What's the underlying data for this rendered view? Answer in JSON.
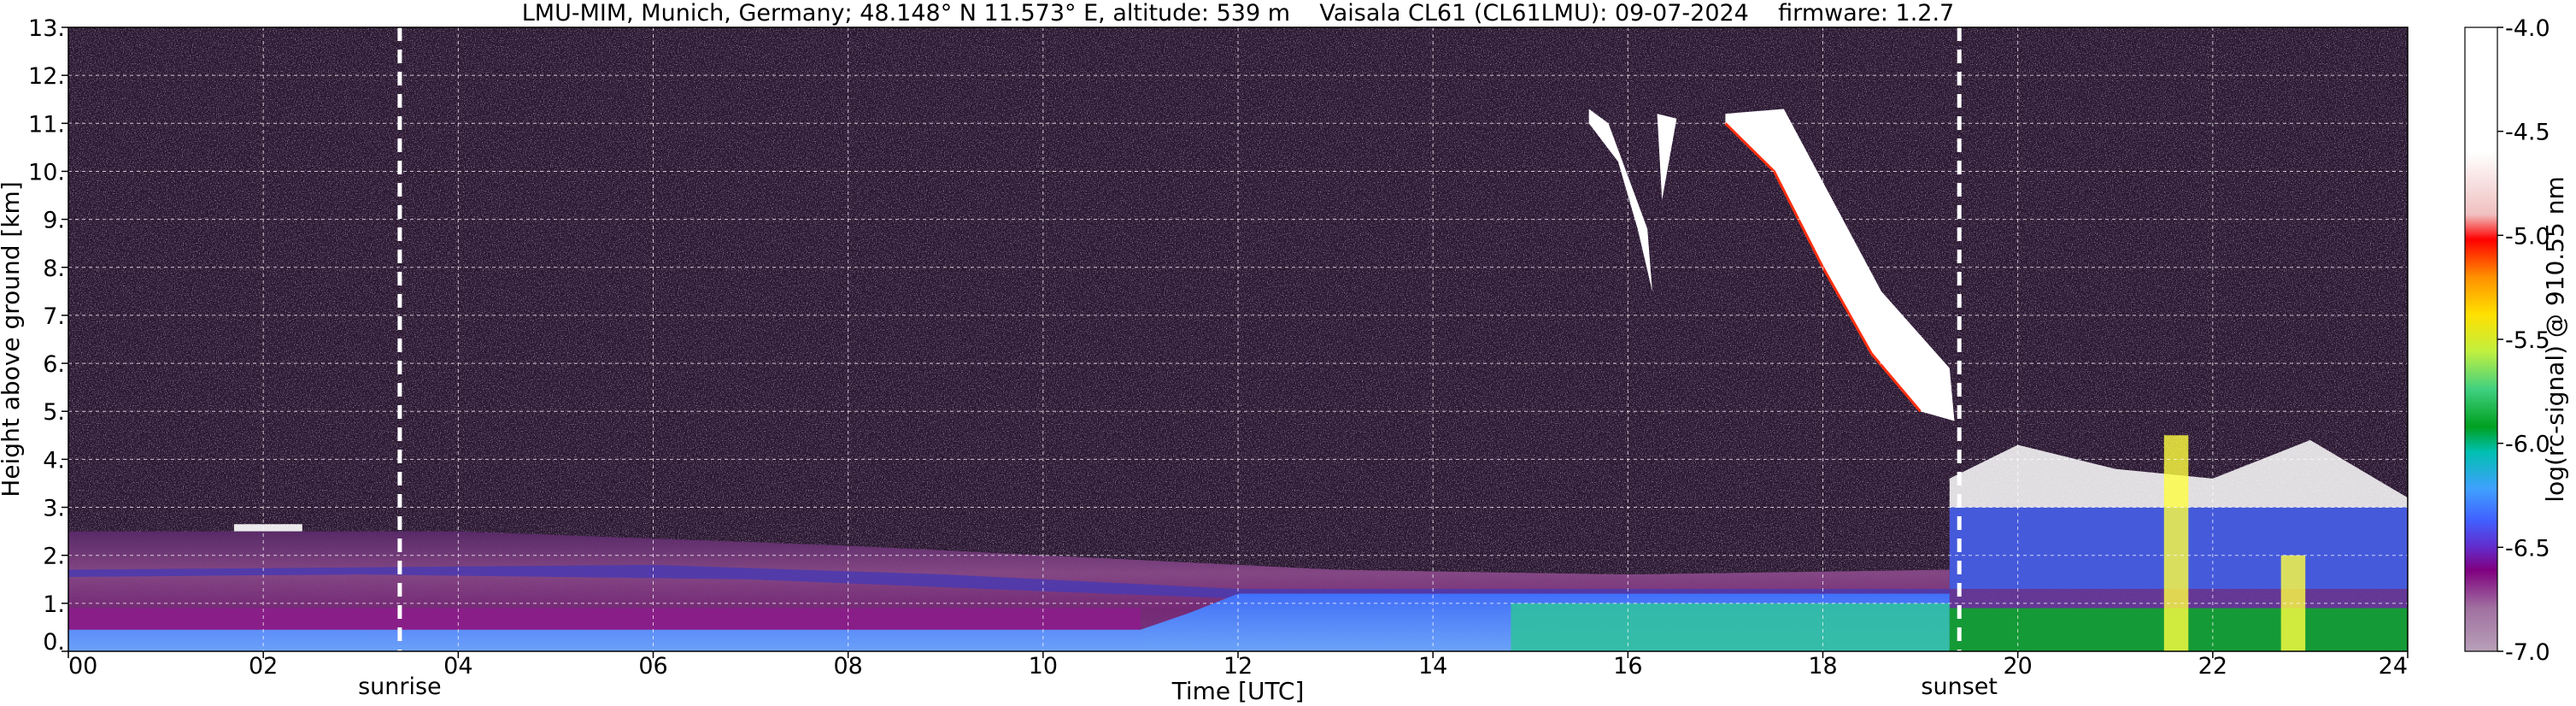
{
  "chart_data": {
    "type": "heatmap",
    "title": "LMU-MIM, Munich, Germany; 48.148° N 11.573° E, altitude: 539 m    Vaisala CL61 (CL61LMU): 09-07-2024    firmware: 1.2.7",
    "xlabel": "Time [UTC]",
    "ylabel": "Height above ground [km]",
    "xlim": [
      0,
      24
    ],
    "ylim": [
      0,
      13
    ],
    "x_ticks": [
      0,
      2,
      4,
      6,
      8,
      10,
      12,
      14,
      16,
      18,
      20,
      22,
      24
    ],
    "x_tick_labels": [
      "00",
      "02",
      "04",
      "06",
      "08",
      "10",
      "12",
      "14",
      "16",
      "18",
      "20",
      "22",
      "24"
    ],
    "y_ticks": [
      0,
      1,
      2,
      3,
      4,
      5,
      6,
      7,
      8,
      9,
      10,
      11,
      12,
      13
    ],
    "y_tick_labels": [
      "0.",
      "1.",
      "2.",
      "3.",
      "4.",
      "5.",
      "6.",
      "7.",
      "8.",
      "9.",
      "10.",
      "11.",
      "12.",
      "13."
    ],
    "grid": true,
    "colorbar": {
      "label": "log(rc-signal) @ 910.55 nm",
      "range": [
        -7.0,
        -4.0
      ],
      "ticks": [
        -4.0,
        -4.5,
        -5.0,
        -5.5,
        -6.0,
        -6.5,
        -7.0
      ],
      "tick_labels": [
        "-4.0",
        "-4.5",
        "-5.0",
        "-5.5",
        "-6.0",
        "-6.5",
        "-7.0"
      ],
      "colors": [
        "#ffffff",
        "#ffffff",
        "#f0e0e0",
        "#f0a0a0",
        "#ff0000",
        "#ff6000",
        "#ffa000",
        "#ffd000",
        "#e0f000",
        "#a0f060",
        "#60e0a0",
        "#20c070",
        "#00a020",
        "#00c0a0",
        "#40a0ff",
        "#4070ff",
        "#6040e0",
        "#800080",
        "#904090",
        "#a070a0",
        "#b090b0"
      ]
    },
    "annotations": [
      {
        "text": "sunrise",
        "x": 3.4
      },
      {
        "text": "sunset",
        "x": 19.4
      }
    ],
    "layers": [
      {
        "name": "background noise",
        "x": [
          0,
          24
        ],
        "y": [
          0,
          13
        ],
        "value": -6.8
      },
      {
        "name": "boundary layer",
        "x": [
          0,
          24
        ],
        "y": [
          0,
          2.5
        ],
        "value": -6.4
      },
      {
        "name": "near surface",
        "x": [
          0,
          24
        ],
        "y": [
          0,
          0.8
        ],
        "value": -6.0
      },
      {
        "name": "cirrus",
        "x": [
          15.6,
          19.4
        ],
        "y": [
          4.7,
          11.3
        ],
        "value": -4.0
      },
      {
        "name": "cloud top evening",
        "x": [
          19.3,
          24
        ],
        "y": [
          3.0,
          4.6
        ],
        "value": -4.0
      }
    ]
  }
}
